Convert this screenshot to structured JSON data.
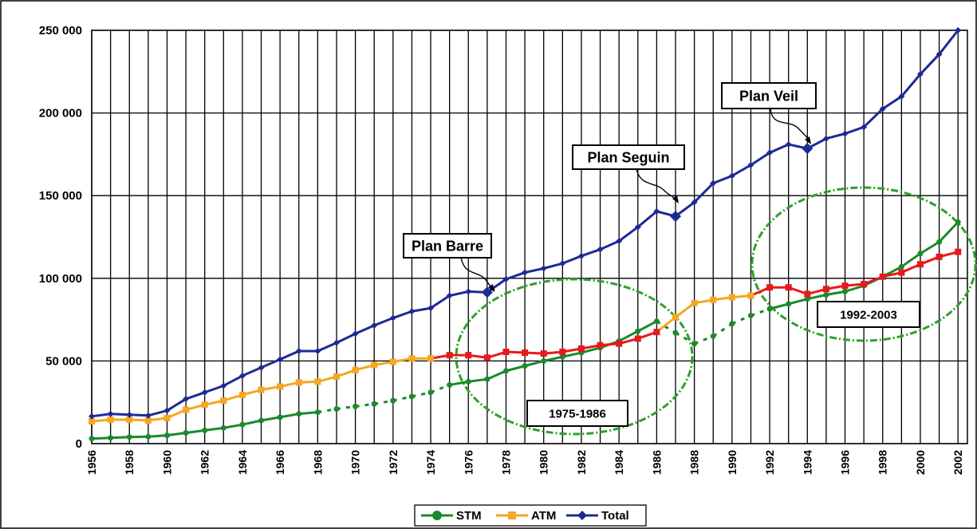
{
  "chart_data": {
    "type": "line",
    "title": "",
    "xlabel": "",
    "ylabel": "",
    "ylim": [
      0,
      250000
    ],
    "yticks": [
      0,
      50000,
      100000,
      150000,
      200000,
      250000
    ],
    "ytick_labels": [
      "0",
      "50 000",
      "100 000",
      "150 000",
      "200 000",
      "250 000"
    ],
    "xlim": [
      1956,
      2002.5
    ],
    "xticks": [
      1956,
      1958,
      1960,
      1962,
      1964,
      1966,
      1968,
      1970,
      1972,
      1974,
      1976,
      1978,
      1980,
      1982,
      1984,
      1986,
      1988,
      1990,
      1992,
      1994,
      1996,
      1998,
      2000,
      2002
    ],
    "grid": true,
    "legend_position": "bottom",
    "series": [
      {
        "name": "STM",
        "color": "#1a8a2a",
        "marker": "circle",
        "x": [
          1956,
          1957,
          1958,
          1959,
          1960,
          1961,
          1962,
          1963,
          1964,
          1965,
          1966,
          1967,
          1968,
          1969,
          1970,
          1971,
          1972,
          1973,
          1974,
          1975,
          1976,
          1977,
          1978,
          1979,
          1980,
          1981,
          1982,
          1983,
          1984,
          1985,
          1986,
          1987,
          1988,
          1989,
          1990,
          1991,
          1992,
          1993,
          1994,
          1995,
          1996,
          1997,
          1998,
          1999,
          2000,
          2001,
          2002
        ],
        "values": [
          3000,
          3500,
          4000,
          4200,
          5000,
          6500,
          8000,
          9500,
          11500,
          14000,
          16000,
          18000,
          19000,
          21000,
          22500,
          24000,
          26000,
          28500,
          31000,
          35500,
          37500,
          39000,
          44000,
          47000,
          50000,
          52500,
          55000,
          58000,
          62000,
          68000,
          74000,
          67000,
          60500,
          65000,
          72500,
          77500,
          81500,
          84500,
          87500,
          90000,
          92000,
          95500,
          101000,
          107000,
          115000,
          122000,
          134000
        ]
      },
      {
        "name": "ATM",
        "color": "#f5a623",
        "marker": "square",
        "x": [
          1956,
          1957,
          1958,
          1959,
          1960,
          1961,
          1962,
          1963,
          1964,
          1965,
          1966,
          1967,
          1968,
          1969,
          1970,
          1971,
          1972,
          1973,
          1974,
          1975,
          1976,
          1977,
          1978,
          1979,
          1980,
          1981,
          1982,
          1983,
          1984,
          1985,
          1986,
          1987,
          1988,
          1989,
          1990,
          1991,
          1992,
          1993,
          1994,
          1995,
          1996,
          1997,
          1998,
          1999,
          2000,
          2001,
          2002
        ],
        "values": [
          13500,
          14500,
          14500,
          14000,
          15500,
          20500,
          23500,
          26000,
          29500,
          32500,
          34500,
          37000,
          37500,
          40500,
          44500,
          47500,
          49500,
          51500,
          51500,
          53500,
          53500,
          52000,
          55500,
          55000,
          54500,
          55500,
          57500,
          59500,
          60500,
          63500,
          67500,
          76500,
          85000,
          87000,
          88500,
          89500,
          94500,
          94500,
          90500,
          93500,
          95500,
          96500,
          101000,
          103500,
          108500,
          113000,
          116000
        ]
      },
      {
        "name": "Total",
        "color": "#1c2a96",
        "marker": "diamond",
        "x": [
          1956,
          1957,
          1958,
          1959,
          1960,
          1961,
          1962,
          1963,
          1964,
          1965,
          1966,
          1967,
          1968,
          1969,
          1970,
          1971,
          1972,
          1973,
          1974,
          1975,
          1976,
          1977,
          1978,
          1979,
          1980,
          1981,
          1982,
          1983,
          1984,
          1985,
          1986,
          1987,
          1988,
          1989,
          1990,
          1991,
          1992,
          1993,
          1994,
          1995,
          1996,
          1997,
          1998,
          1999,
          2000,
          2001,
          2002
        ],
        "values": [
          16500,
          18000,
          17500,
          17000,
          20000,
          27000,
          31000,
          35000,
          41000,
          46000,
          51000,
          56000,
          56000,
          61000,
          66500,
          71500,
          76000,
          80000,
          82000,
          89500,
          92000,
          91500,
          99500,
          103500,
          106000,
          109000,
          113500,
          117500,
          122500,
          131000,
          140500,
          137500,
          146000,
          157500,
          162000,
          168500,
          176000,
          181000,
          178500,
          184500,
          187500,
          191500,
          202500,
          210000,
          223500,
          235500,
          250000
        ]
      }
    ],
    "annotations": {
      "plan_barre": "Plan Barre",
      "plan_seguin": "Plan Seguin",
      "plan_veil": "Plan Veil",
      "period_1": "1975-1986",
      "period_2": "1992-2003"
    },
    "highlight_color": "#2fa02a",
    "highlight_segment_color": "#e8181c"
  }
}
